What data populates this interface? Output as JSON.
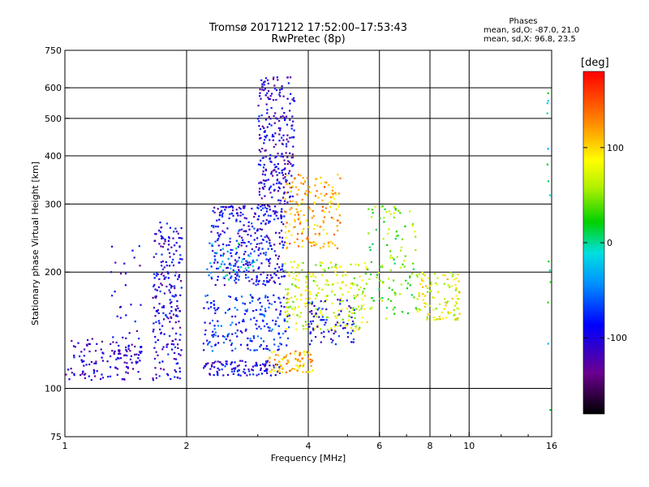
{
  "header": {
    "title_line1": "Tromsø 20171212 17:52:00–17:53:43",
    "title_line2": "RwPretec (8p)"
  },
  "stats": {
    "heading": "Phases",
    "line1": "mean, sd,O: -87.0, 21.0",
    "line2": "mean, sd,X:  96.8, 23.5"
  },
  "colorbar": {
    "unit": "[deg]",
    "ticks": [
      "100",
      "0",
      "-100"
    ],
    "tick_values": [
      100,
      0,
      -100
    ],
    "range": [
      -180,
      180
    ]
  },
  "chart_data": {
    "type": "scatter",
    "xlabel": "Frequency [MHz]",
    "ylabel": "Stationary phase Virtual Height [km]",
    "x_scale": "log",
    "y_scale": "log",
    "xlim": [
      1,
      16
    ],
    "ylim": [
      75,
      750
    ],
    "x_ticks": [
      1,
      2,
      4,
      6,
      8,
      10,
      16
    ],
    "x_tick_labels": [
      "1",
      "2",
      "4",
      "6",
      "8",
      "10",
      "16"
    ],
    "y_ticks": [
      75,
      100,
      200,
      300,
      400,
      500,
      600,
      750
    ],
    "y_tick_labels": [
      "75",
      "100",
      "200",
      "300",
      "400",
      "500",
      "600",
      "750"
    ],
    "grid_x": [
      2,
      4,
      6,
      8,
      10
    ],
    "grid_y": [
      100,
      200,
      300,
      400,
      500,
      600
    ],
    "clusters": [
      {
        "f": [
          1.0,
          1.55
        ],
        "h": [
          105,
          135
        ],
        "phase": -110,
        "n": 130
      },
      {
        "f": [
          1.3,
          1.55
        ],
        "h": [
          115,
          240
        ],
        "phase": -105,
        "n": 30
      },
      {
        "f": [
          1.65,
          1.95
        ],
        "h": [
          105,
          270
        ],
        "phase": -100,
        "n": 220
      },
      {
        "f": [
          2.2,
          3.4
        ],
        "h": [
          108,
          118
        ],
        "phase": -100,
        "n": 110
      },
      {
        "f": [
          2.2,
          3.6
        ],
        "h": [
          125,
          175
        ],
        "phase": -75,
        "n": 200
      },
      {
        "f": [
          2.3,
          3.5
        ],
        "h": [
          185,
          300
        ],
        "phase": -95,
        "n": 330
      },
      {
        "f": [
          3.0,
          3.7
        ],
        "h": [
          300,
          640
        ],
        "phase": -105,
        "n": 260
      },
      {
        "f": [
          3.2,
          4.1
        ],
        "h": [
          110,
          125
        ],
        "phase": 110,
        "n": 80
      },
      {
        "f": [
          3.5,
          4.8
        ],
        "h": [
          230,
          360
        ],
        "phase": 115,
        "n": 170
      },
      {
        "f": [
          3.5,
          5.6
        ],
        "h": [
          140,
          215
        ],
        "phase": 70,
        "n": 230
      },
      {
        "f": [
          4.0,
          5.2
        ],
        "h": [
          130,
          170
        ],
        "phase": -90,
        "n": 80
      },
      {
        "f": [
          5.6,
          7.4
        ],
        "h": [
          150,
          300
        ],
        "phase": 40,
        "n": 110
      },
      {
        "f": [
          7.4,
          9.5
        ],
        "h": [
          150,
          200
        ],
        "phase": 80,
        "n": 110
      },
      {
        "f": [
          2.2,
          3.0
        ],
        "h": [
          190,
          240
        ],
        "phase": -30,
        "n": 50
      },
      {
        "f": [
          15.6,
          15.9
        ],
        "h": [
          85,
          640
        ],
        "phase": 0,
        "n": 14
      }
    ]
  }
}
